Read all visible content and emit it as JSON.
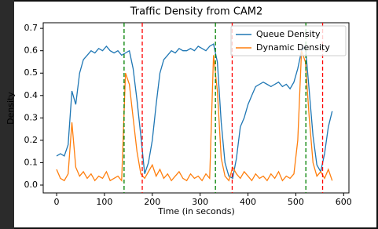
{
  "chart_data": {
    "type": "line",
    "title": "Traffic Density from CAM2",
    "xlabel": "Time (in seconds)",
    "ylabel": "Density",
    "x": [
      0,
      8,
      16,
      24,
      32,
      40,
      48,
      56,
      64,
      72,
      80,
      88,
      96,
      104,
      112,
      120,
      128,
      136,
      144,
      152,
      160,
      168,
      176,
      184,
      192,
      200,
      208,
      216,
      224,
      232,
      240,
      248,
      256,
      264,
      272,
      280,
      288,
      296,
      304,
      312,
      320,
      328,
      336,
      344,
      352,
      360,
      368,
      376,
      384,
      392,
      400,
      408,
      416,
      424,
      432,
      440,
      448,
      456,
      464,
      472,
      480,
      488,
      496,
      504,
      512,
      520,
      528,
      536,
      544,
      552,
      560,
      568,
      576
    ],
    "series": [
      {
        "name": "Queue Density",
        "color": "#1f77b4",
        "values": [
          0.13,
          0.14,
          0.13,
          0.18,
          0.42,
          0.36,
          0.5,
          0.56,
          0.58,
          0.6,
          0.59,
          0.61,
          0.6,
          0.62,
          0.6,
          0.59,
          0.6,
          0.58,
          0.59,
          0.6,
          0.52,
          0.38,
          0.22,
          0.05,
          0.1,
          0.2,
          0.36,
          0.5,
          0.56,
          0.58,
          0.6,
          0.59,
          0.61,
          0.6,
          0.6,
          0.61,
          0.6,
          0.62,
          0.61,
          0.6,
          0.62,
          0.63,
          0.55,
          0.28,
          0.1,
          0.04,
          0.03,
          0.12,
          0.26,
          0.3,
          0.36,
          0.4,
          0.44,
          0.45,
          0.46,
          0.45,
          0.44,
          0.45,
          0.46,
          0.44,
          0.45,
          0.43,
          0.46,
          0.52,
          0.6,
          0.62,
          0.42,
          0.22,
          0.09,
          0.06,
          0.14,
          0.26,
          0.33
        ]
      },
      {
        "name": "Dynamic Density",
        "color": "#ff7f0e",
        "values": [
          0.07,
          0.03,
          0.02,
          0.05,
          0.28,
          0.08,
          0.04,
          0.06,
          0.03,
          0.05,
          0.02,
          0.04,
          0.03,
          0.06,
          0.02,
          0.03,
          0.04,
          0.02,
          0.5,
          0.45,
          0.3,
          0.15,
          0.05,
          0.03,
          0.06,
          0.09,
          0.04,
          0.07,
          0.03,
          0.05,
          0.02,
          0.04,
          0.06,
          0.03,
          0.02,
          0.05,
          0.03,
          0.04,
          0.02,
          0.05,
          0.03,
          0.58,
          0.42,
          0.12,
          0.04,
          0.02,
          0.08,
          0.05,
          0.03,
          0.06,
          0.04,
          0.02,
          0.05,
          0.03,
          0.04,
          0.02,
          0.05,
          0.03,
          0.06,
          0.02,
          0.04,
          0.03,
          0.05,
          0.2,
          0.6,
          0.55,
          0.3,
          0.1,
          0.04,
          0.06,
          0.03,
          0.07,
          0.02
        ]
      }
    ],
    "vlines": [
      {
        "x": 141,
        "color": "green"
      },
      {
        "x": 179,
        "color": "red"
      },
      {
        "x": 332,
        "color": "green"
      },
      {
        "x": 367,
        "color": "red"
      },
      {
        "x": 521,
        "color": "green"
      },
      {
        "x": 556,
        "color": "red"
      }
    ],
    "xlim": [
      -28,
      611
    ],
    "ylim": [
      -0.035,
      0.725
    ],
    "xticks": [
      0,
      100,
      200,
      300,
      400,
      500,
      600
    ],
    "yticks": [
      {
        "value": 0,
        "label": "0.0"
      },
      0.1,
      0.2,
      0.3,
      0.4,
      0.5,
      0.6,
      0.7
    ],
    "legend": "upper right"
  }
}
